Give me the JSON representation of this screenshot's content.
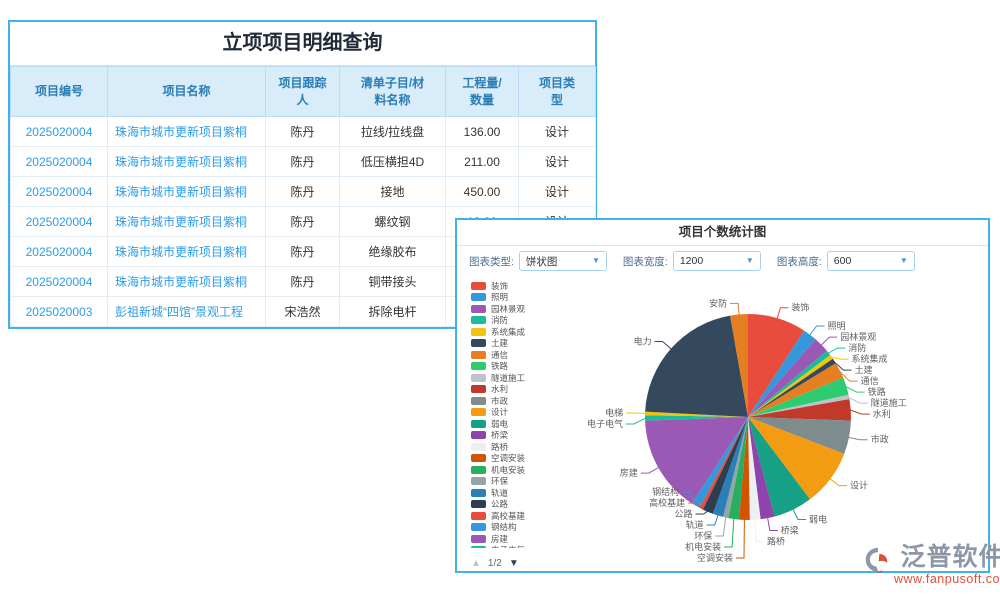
{
  "colors": {
    "accent_border": "#41b1ea",
    "table_header_bg": "#d8ecfa",
    "table_header_text": "#2a7db5",
    "link_text": "#2e9be6",
    "brand_gray": "#8d97a8",
    "brand_red": "#e2503c"
  },
  "table": {
    "title": "立项项目明细查询",
    "columns": [
      "项目编号",
      "项目名称",
      "项目跟踪\n人",
      "清单子目/材\n料名称",
      "工程量/\n数量",
      "项目类\n型"
    ],
    "rows": [
      [
        "2025020004",
        "珠海市城市更新项目紫桐",
        "陈丹",
        "拉线/拉线盘",
        "136.00",
        "设计"
      ],
      [
        "2025020004",
        "珠海市城市更新项目紫桐",
        "陈丹",
        "低压横担4D",
        "211.00",
        "设计"
      ],
      [
        "2025020004",
        "珠海市城市更新项目紫桐",
        "陈丹",
        "接地",
        "450.00",
        "设计"
      ],
      [
        "2025020004",
        "珠海市城市更新项目紫桐",
        "陈丹",
        "螺纹钢",
        "12.00",
        "设计"
      ],
      [
        "2025020004",
        "珠海市城市更新项目紫桐",
        "陈丹",
        "绝缘胶布",
        "",
        ""
      ],
      [
        "2025020004",
        "珠海市城市更新项目紫桐",
        "陈丹",
        "铜带接头",
        "",
        ""
      ],
      [
        "2025020003",
        "彭祖新城“四馆”景观工程",
        "宋浩然",
        "拆除电杆",
        "",
        ""
      ]
    ]
  },
  "chart_panel": {
    "title": "项目个数统计图",
    "controls": [
      {
        "label": "图表类型:",
        "value": "饼状图"
      },
      {
        "label": "图表宽度:",
        "value": "1200"
      },
      {
        "label": "图表高度:",
        "value": "600"
      }
    ],
    "legend_pager": {
      "up": "▲",
      "page": "1/2",
      "down": "▼"
    },
    "legend_visible_count": 24
  },
  "chart_data": {
    "type": "pie",
    "title": "项目个数统计图",
    "legend_position": "left",
    "value_note": "angle_deg is the slice size estimated from the rendered pie (no numeric labels shown)",
    "slices": [
      {
        "label": "装饰",
        "color": "#e74c3c",
        "angle_deg": 33
      },
      {
        "label": "照明",
        "color": "#3498db",
        "angle_deg": 8
      },
      {
        "label": "园林景观",
        "color": "#9b59b6",
        "angle_deg": 9
      },
      {
        "label": "消防",
        "color": "#1abc9c",
        "angle_deg": 3
      },
      {
        "label": "系统集成",
        "color": "#f1c40f",
        "angle_deg": 2.5
      },
      {
        "label": "土建",
        "color": "#34495e",
        "angle_deg": 3
      },
      {
        "label": "通信",
        "color": "#e67e22",
        "angle_deg": 9
      },
      {
        "label": "铁路",
        "color": "#2ecc71",
        "angle_deg": 10
      },
      {
        "label": "隧道施工",
        "color": "#bdc3c7",
        "angle_deg": 2.5
      },
      {
        "label": "水利",
        "color": "#c0392b",
        "angle_deg": 12
      },
      {
        "label": "市政",
        "color": "#7f8c8d",
        "angle_deg": 19
      },
      {
        "label": "设计",
        "color": "#f39c12",
        "angle_deg": 32
      },
      {
        "label": "弱电",
        "color": "#16a085",
        "angle_deg": 22
      },
      {
        "label": "桥梁",
        "color": "#8e44ad",
        "angle_deg": 8
      },
      {
        "label": "路桥",
        "color": "#ecf0f1",
        "angle_deg": 6
      },
      {
        "label": "空调安装",
        "color": "#d35400",
        "angle_deg": 6
      },
      {
        "label": "机电安装",
        "color": "#27ae60",
        "angle_deg": 6
      },
      {
        "label": "环保",
        "color": "#95a5a6",
        "angle_deg": 3
      },
      {
        "label": "轨道",
        "color": "#2980b9",
        "angle_deg": 6
      },
      {
        "label": "公路",
        "color": "#2c3e50",
        "angle_deg": 6
      },
      {
        "label": "高校基建",
        "color": "#e74c3c",
        "angle_deg": 2
      },
      {
        "label": "钢结构",
        "color": "#3498db",
        "angle_deg": 5
      },
      {
        "label": "房建",
        "color": "#9b59b6",
        "angle_deg": 55
      },
      {
        "label": "电子电气",
        "color": "#1abc9c",
        "angle_deg": 3
      },
      {
        "label": "电梯",
        "color": "#f1c40f",
        "angle_deg": 2
      },
      {
        "label": "电力",
        "color": "#34495e",
        "angle_deg": 77
      },
      {
        "label": "安防",
        "color": "#e67e22",
        "angle_deg": 10
      }
    ]
  },
  "brand": {
    "name": "泛普软件",
    "url": "www.fanpusoft.com"
  }
}
